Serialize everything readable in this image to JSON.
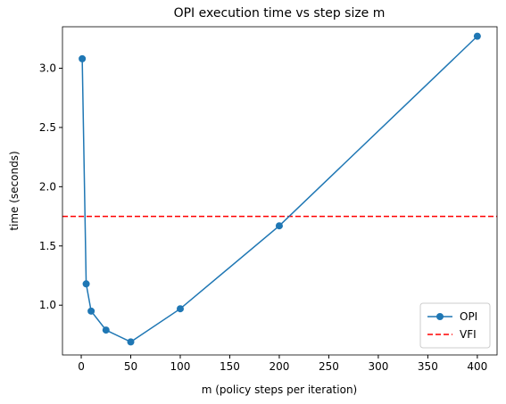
{
  "chart_data": {
    "type": "line",
    "title": "OPI execution time vs step size m",
    "x_label": "m (policy steps per iteration)",
    "y_label": "time (seconds)",
    "x": [
      1,
      5,
      10,
      25,
      50,
      100,
      200,
      400
    ],
    "series": [
      {
        "name": "OPI",
        "color": "#1f77b4",
        "marker": "o",
        "values": [
          3.08,
          1.18,
          0.95,
          0.79,
          0.69,
          0.97,
          1.67,
          3.27
        ]
      }
    ],
    "hlines": [
      {
        "name": "VFI",
        "color": "#ff0000",
        "linestyle": "dashed",
        "value": 1.75
      }
    ],
    "xlim": [
      -18.95,
      419.95
    ],
    "ylim": [
      0.58,
      3.35
    ],
    "xticks": [
      0,
      50,
      100,
      150,
      200,
      250,
      300,
      350,
      400
    ],
    "yticks": [
      {
        "value": 1,
        "label": "1.0"
      },
      {
        "value": 1.5,
        "label": "1.5"
      },
      {
        "value": 2,
        "label": "2.0"
      },
      {
        "value": 2.5,
        "label": "2.5"
      },
      {
        "value": 3,
        "label": "3.0"
      }
    ],
    "legend": "lower right"
  }
}
